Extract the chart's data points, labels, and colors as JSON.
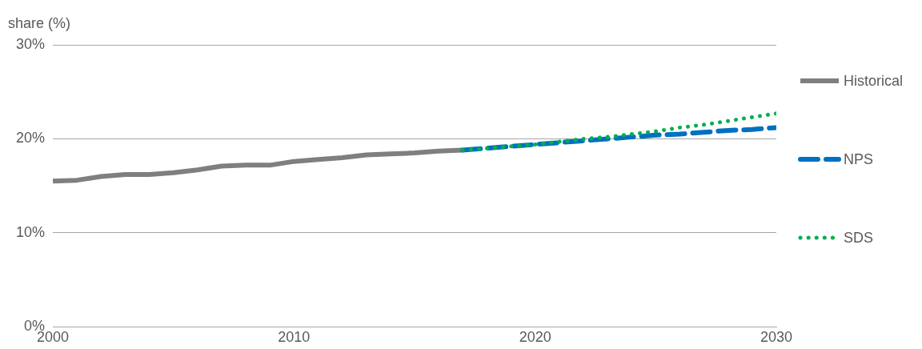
{
  "chart_data": {
    "type": "line",
    "ylabel": "share (%)",
    "xlim": [
      2000,
      2030
    ],
    "xticks": [
      2000,
      2010,
      2020,
      2030
    ],
    "ylim": [
      0,
      30
    ],
    "yticks": [
      {
        "value": 0,
        "label": "0%"
      },
      {
        "value": 10,
        "label": "10%"
      },
      {
        "value": 20,
        "label": "20%"
      },
      {
        "value": 30,
        "label": "30%"
      }
    ],
    "grid": "y",
    "legend": "right",
    "marker": "none",
    "series": [
      {
        "name": "Historical",
        "color": "#7f7f7f",
        "line_style": "solid",
        "x": [
          2000,
          2001,
          2002,
          2003,
          2004,
          2005,
          2006,
          2007,
          2008,
          2009,
          2010,
          2011,
          2012,
          2013,
          2014,
          2015,
          2016,
          2017
        ],
        "values": [
          15.5,
          15.6,
          16.0,
          16.2,
          16.2,
          16.4,
          16.7,
          17.1,
          17.2,
          17.2,
          17.6,
          17.8,
          18.0,
          18.3,
          18.4,
          18.5,
          18.7,
          18.8
        ]
      },
      {
        "name": "NPS",
        "color": "#0070c0",
        "line_style": "dashed",
        "x": [
          2017,
          2018,
          2019,
          2020,
          2021,
          2022,
          2023,
          2024,
          2025,
          2026,
          2027,
          2028,
          2029,
          2030
        ],
        "values": [
          18.8,
          19.0,
          19.2,
          19.4,
          19.6,
          19.8,
          20.0,
          20.2,
          20.4,
          20.5,
          20.7,
          20.9,
          21.0,
          21.2
        ]
      },
      {
        "name": "SDS",
        "color": "#00b050",
        "line_style": "dotted",
        "x": [
          2017,
          2018,
          2019,
          2020,
          2021,
          2022,
          2023,
          2024,
          2025,
          2026,
          2027,
          2028,
          2029,
          2030
        ],
        "values": [
          18.8,
          19.0,
          19.2,
          19.4,
          19.7,
          20.0,
          20.2,
          20.5,
          20.8,
          21.2,
          21.5,
          21.9,
          22.3,
          22.7
        ]
      }
    ]
  }
}
